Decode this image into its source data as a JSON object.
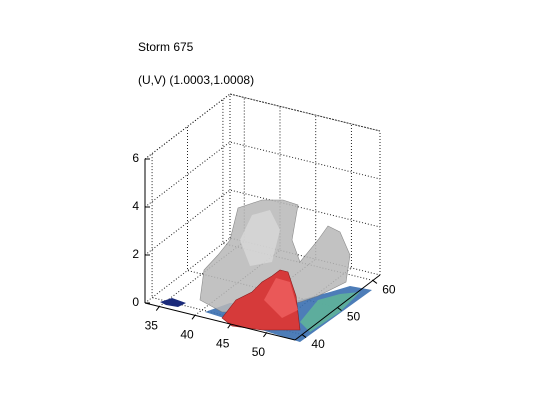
{
  "chart_data": {
    "type": "surface3d",
    "title": "Storm 675",
    "subtitle": "(U,V) (1.0003,1.0008)",
    "xlim": [
      33,
      54
    ],
    "xticks": [
      35,
      40,
      45,
      50
    ],
    "ylim": [
      38,
      62
    ],
    "yticks": [
      40,
      50,
      60
    ],
    "zlim": [
      0,
      6
    ],
    "zticks": [
      0,
      2,
      4,
      6
    ],
    "grid": true
  }
}
